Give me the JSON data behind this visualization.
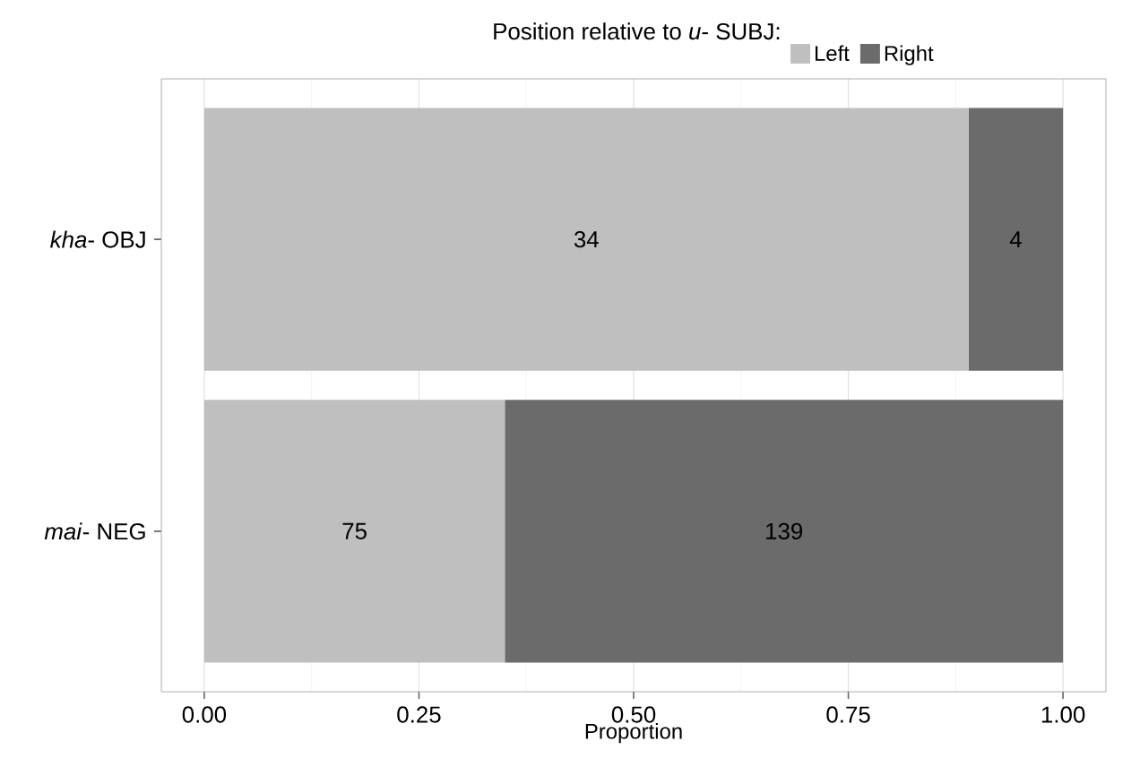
{
  "chart_data": {
    "type": "bar",
    "orientation": "horizontal",
    "stacked": true,
    "categories": [
      "*kha*- OBJ",
      "*mai*- NEG"
    ],
    "series": [
      {
        "name": "Left",
        "color": "#bfbfbf",
        "values": [
          0.89,
          0.35
        ]
      },
      {
        "name": "Right",
        "color": "#6b6b6b",
        "values": [
          0.11,
          0.65
        ]
      }
    ],
    "annotations": [
      "34",
      "4",
      "75",
      "139"
    ],
    "legend_title": "Position relative to *u*- SUBJ:",
    "xlabel": "Proportion",
    "xlim": [
      -0.05,
      1.05
    ],
    "xticks": [
      {
        "value": 0,
        "label": "0.00"
      },
      {
        "value": 0.25,
        "label": "0.25"
      },
      {
        "value": 0.5,
        "label": "0.50"
      },
      {
        "value": 0.75,
        "label": "0.75"
      },
      {
        "value": 1,
        "label": "1.00"
      }
    ],
    "grid": "x",
    "legend": "top"
  }
}
